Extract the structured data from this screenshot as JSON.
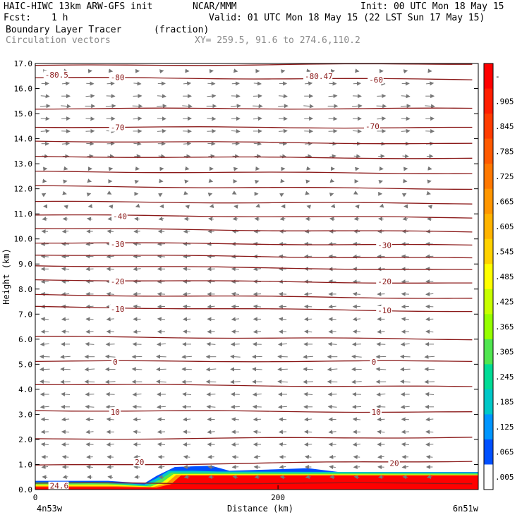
{
  "header": {
    "model": "HAIC-HIWC 13km ARW-GFS init",
    "org": "NCAR/MMM",
    "init": "Init: 00 UTC Mon 18 May 15",
    "fcst_label": "Fcst:",
    "fcst_value": "1 h",
    "valid": "Valid: 01 UTC Mon 18 May 15 (22 LST Sun 17 May 15)",
    "field_name": "Boundary Layer Tracer",
    "field_units": "(fraction)",
    "vector_name": "Circulation vectors",
    "xy_range": "XY= 259.5, 91.6 to 274.6,110.2"
  },
  "chart_data": {
    "type": "cross-section",
    "ylabel": "Height (km)",
    "xlabel": "Distance (km)",
    "ylim": [
      0,
      17
    ],
    "xlim": [
      0,
      365
    ],
    "y_ticks": [
      "0.0",
      "1.0",
      "2.0",
      "3.0",
      "4.0",
      "5.0",
      "6.0",
      "7.0",
      "8.0",
      "9.0",
      "10.0",
      "11.0",
      "12.0",
      "13.0",
      "14.0",
      "15.0",
      "16.0",
      "17.0"
    ],
    "x_ticks": [
      {
        "value": 0,
        "label": "0"
      },
      {
        "value": 200,
        "label": "200"
      }
    ],
    "x_endpoints": {
      "left": "4n53w",
      "right": "6n51w"
    },
    "colorbar": {
      "labels": [
        "-",
        ".905",
        ".845",
        ".785",
        ".725",
        ".665",
        ".605",
        ".545",
        ".485",
        ".425",
        ".365",
        ".305",
        ".245",
        ".185",
        ".125",
        ".065",
        ".005"
      ],
      "colors": [
        "#ff0000",
        "#ff1e00",
        "#ff3c00",
        "#ff5a00",
        "#ff7800",
        "#ff9600",
        "#ffb400",
        "#ffd200",
        "#ffff00",
        "#c8ff00",
        "#96ff00",
        "#50e650",
        "#00dc96",
        "#00c8c8",
        "#0096ff",
        "#0050ff",
        "#ffffff"
      ]
    },
    "contour_lines": [
      {
        "z": 0.25,
        "slope": 0.0
      },
      {
        "z": 1.05,
        "slope": 0.05
      },
      {
        "z": 2.05,
        "slope": 0.02
      },
      {
        "z": 3.12,
        "slope": -0.02
      },
      {
        "z": 4.15,
        "slope": -0.03
      },
      {
        "z": 5.12,
        "slope": 0.0
      },
      {
        "z": 6.05,
        "slope": -0.03
      },
      {
        "z": 7.2,
        "slope": -0.05
      },
      {
        "z": 7.7,
        "slope": -0.04
      },
      {
        "z": 8.3,
        "slope": -0.04
      },
      {
        "z": 8.85,
        "slope": -0.05
      },
      {
        "z": 9.3,
        "slope": -0.04
      },
      {
        "z": 9.8,
        "slope": -0.03
      },
      {
        "z": 10.35,
        "slope": -0.04
      },
      {
        "z": 10.9,
        "slope": -0.03
      },
      {
        "z": 11.45,
        "slope": -0.02
      },
      {
        "z": 12.05,
        "slope": -0.03
      },
      {
        "z": 12.65,
        "slope": -0.02
      },
      {
        "z": 13.25,
        "slope": -0.02
      },
      {
        "z": 13.85,
        "slope": -0.03
      },
      {
        "z": 14.45,
        "slope": -0.01
      },
      {
        "z": 15.2,
        "slope": 0.0
      },
      {
        "z": 16.4,
        "slope": -0.02
      },
      {
        "z": 16.95,
        "slope": 0.02
      }
    ],
    "contour_labels": [
      {
        "text": "-80.5",
        "x": 8,
        "z": 16.55
      },
      {
        "text": "-80",
        "x": 62,
        "z": 16.45
      },
      {
        "text": "-80.47",
        "x": 222,
        "z": 16.5
      },
      {
        "text": "-60",
        "x": 275,
        "z": 16.35
      },
      {
        "text": "-70",
        "x": 62,
        "z": 14.45
      },
      {
        "text": "-70",
        "x": 272,
        "z": 14.5
      },
      {
        "text": "-40",
        "x": 64,
        "z": 10.9
      },
      {
        "text": "-30",
        "x": 62,
        "z": 9.8
      },
      {
        "text": "-30",
        "x": 282,
        "z": 9.75
      },
      {
        "text": "-20",
        "x": 62,
        "z": 8.3
      },
      {
        "text": "-20",
        "x": 282,
        "z": 8.3
      },
      {
        "text": "-10",
        "x": 62,
        "z": 7.2
      },
      {
        "text": "-10",
        "x": 282,
        "z": 7.15
      },
      {
        "text": "0",
        "x": 64,
        "z": 5.1
      },
      {
        "text": "0",
        "x": 277,
        "z": 5.1
      },
      {
        "text": "10",
        "x": 62,
        "z": 3.1
      },
      {
        "text": "10",
        "x": 277,
        "z": 3.1
      },
      {
        "text": "20",
        "x": 82,
        "z": 1.1
      },
      {
        "text": "20",
        "x": 292,
        "z": 1.05
      },
      {
        "text": "24.6",
        "x": 12,
        "z": 0.15
      }
    ],
    "vectors": {
      "x_stations": [
        8,
        25,
        45,
        62,
        84,
        104,
        125,
        145,
        165,
        183,
        204,
        225,
        245,
        265,
        285,
        305,
        325
      ],
      "levels": [
        {
          "z": 16.7,
          "u": 3
        },
        {
          "z": 16.2,
          "u": 6
        },
        {
          "z": 15.7,
          "u": 7
        },
        {
          "z": 15.3,
          "u": 8
        },
        {
          "z": 14.8,
          "u": 7
        },
        {
          "z": 14.3,
          "u": 7
        },
        {
          "z": 13.8,
          "u": 6
        },
        {
          "z": 13.3,
          "u": 5
        },
        {
          "z": 12.8,
          "u": 3
        },
        {
          "z": 12.3,
          "u": 2
        },
        {
          "z": 11.8,
          "u": 1
        },
        {
          "z": 11.3,
          "u": -2
        },
        {
          "z": 10.8,
          "u": -4
        },
        {
          "z": 10.3,
          "u": -5
        },
        {
          "z": 9.8,
          "u": -6
        },
        {
          "z": 9.3,
          "u": -6
        },
        {
          "z": 8.8,
          "u": -6
        },
        {
          "z": 8.3,
          "u": -6
        },
        {
          "z": 7.8,
          "u": -6
        },
        {
          "z": 7.3,
          "u": -6
        },
        {
          "z": 6.8,
          "u": -6
        },
        {
          "z": 6.3,
          "u": -6
        },
        {
          "z": 5.8,
          "u": -7
        },
        {
          "z": 5.3,
          "u": -8
        },
        {
          "z": 4.8,
          "u": -8
        },
        {
          "z": 4.3,
          "u": -8
        },
        {
          "z": 3.8,
          "u": -7
        },
        {
          "z": 3.3,
          "u": -7
        },
        {
          "z": 2.8,
          "u": -6
        },
        {
          "z": 2.3,
          "u": -6
        },
        {
          "z": 1.8,
          "u": -6
        },
        {
          "z": 1.3,
          "u": -5
        },
        {
          "z": 0.9,
          "u": -5
        },
        {
          "z": 0.5,
          "u": -4
        }
      ]
    }
  }
}
